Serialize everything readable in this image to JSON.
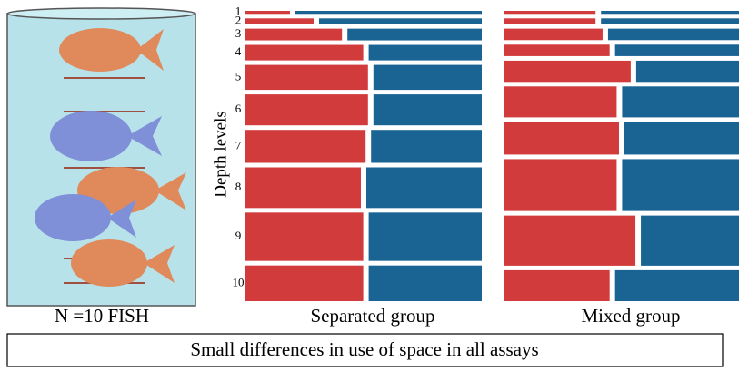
{
  "figure": {
    "left_label": "N =10 FISH",
    "caption": "Small differences in use of space in all assays"
  },
  "chart_data": [
    {
      "type": "mosaic",
      "title": "Separated group",
      "y_label": "Depth levels",
      "categories": [
        "1",
        "2",
        "3",
        "4",
        "5",
        "6",
        "7",
        "8",
        "9",
        "10"
      ],
      "row_heights": [
        1.2,
        2.3,
        4.7,
        6.2,
        10,
        12.4,
        13.2,
        16.3,
        19.4,
        14.3
      ],
      "series": [
        {
          "color": "#d13b3b",
          "values": [
            20,
            30,
            42,
            51,
            53,
            53,
            52,
            50,
            51,
            51
          ]
        },
        {
          "color": "#1a6494",
          "values": [
            80,
            70,
            58,
            49,
            47,
            47,
            48,
            50,
            49,
            49
          ]
        }
      ]
    },
    {
      "type": "mosaic",
      "title": "Mixed group",
      "row_heights": [
        1.2,
        2.3,
        4.6,
        4.6,
        8.5,
        12.4,
        13.1,
        20.8,
        20.1,
        12.4
      ],
      "series": [
        {
          "color": "#d13b3b",
          "values": [
            40,
            40,
            43,
            46,
            55,
            49,
            50,
            49,
            57,
            46
          ]
        },
        {
          "color": "#1a6494",
          "values": [
            60,
            60,
            57,
            54,
            45,
            51,
            50,
            51,
            43,
            54
          ]
        }
      ]
    }
  ]
}
